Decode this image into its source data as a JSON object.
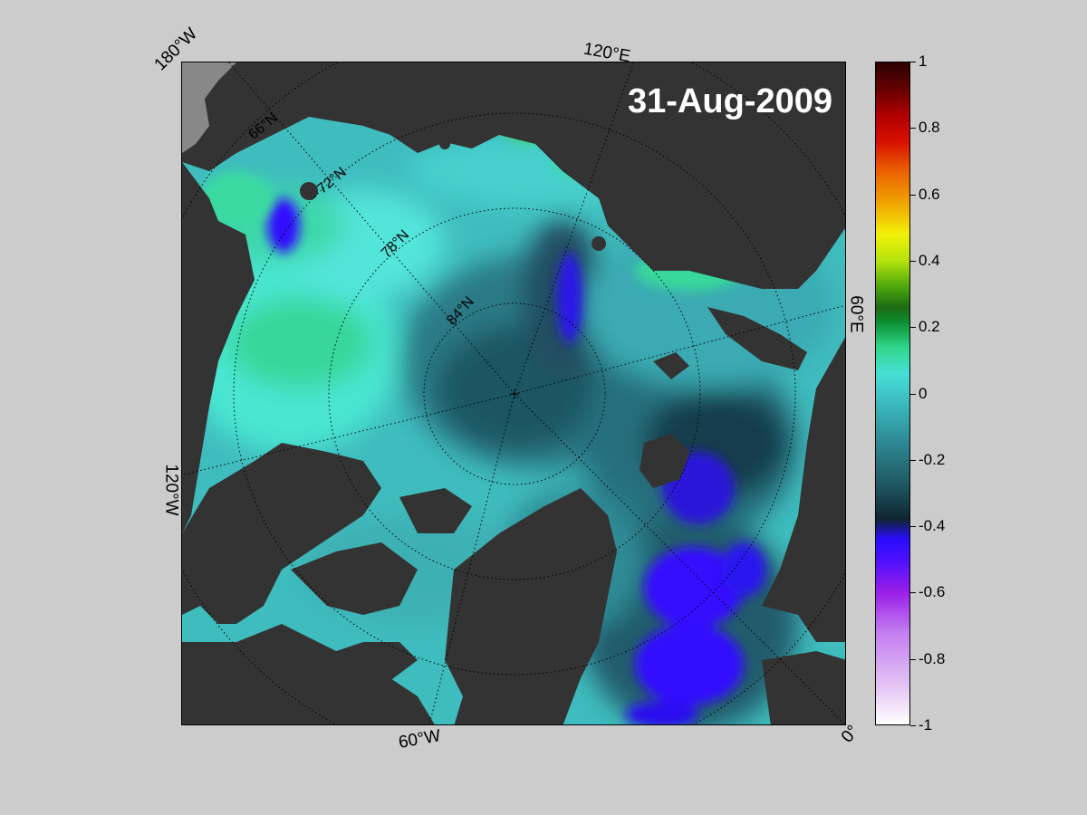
{
  "date": "31-Aug-2009",
  "longitude_labels": {
    "lon_180w": "180°W",
    "lon_120e": "120°E",
    "lon_60e": "60°E",
    "lon_120w": "120°W",
    "lon_60w": "60°W",
    "lon_0": "0°"
  },
  "latitude_labels": {
    "lat_66n": "66°N",
    "lat_72n": "72°N",
    "lat_78n": "78°N",
    "lat_84n": "84°N"
  },
  "colorbar": {
    "min": -1,
    "max": 1,
    "ticks": [
      "1",
      "0.8",
      "0.6",
      "0.4",
      "0.2",
      "0",
      "-0.2",
      "-0.4",
      "-0.6",
      "-0.8",
      "-1"
    ]
  },
  "colors": {
    "background": "#cccccc",
    "land": "#333333",
    "ocean_mid": "#2e8c96",
    "ocean_light": "#46e0d6",
    "ice_negative": "#3010ff"
  }
}
